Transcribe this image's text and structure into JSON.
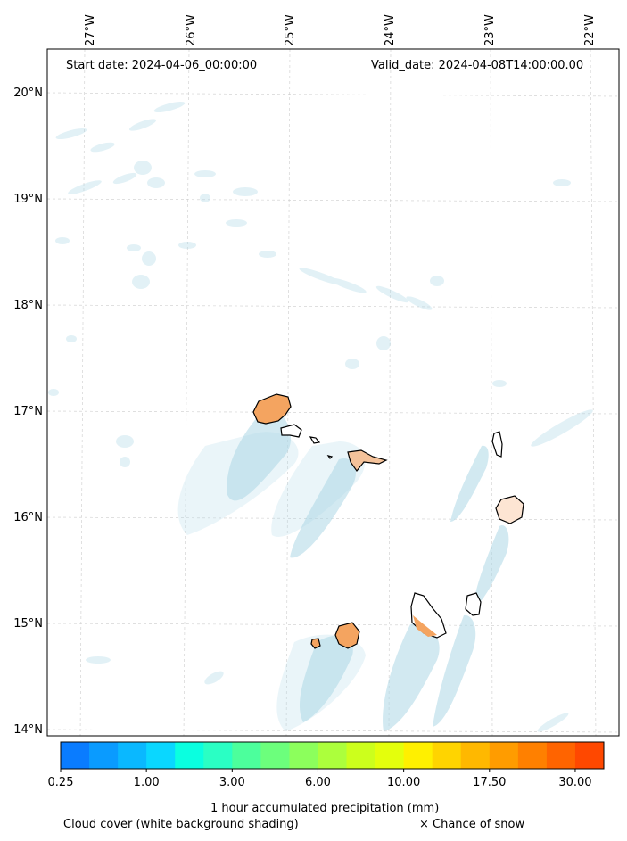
{
  "header": {
    "start_date": "Start date: 2024-04-06_00:00:00",
    "valid_date": "Valid_date: 2024-04-08T14:00:00.00"
  },
  "axes": {
    "longitudes": [
      "27°W",
      "26°W",
      "25°W",
      "24°W",
      "23°W",
      "22°W"
    ],
    "latitudes": [
      "20°N",
      "19°N",
      "18°N",
      "17°N",
      "16°N",
      "15°N",
      "14°N"
    ]
  },
  "colorbar": {
    "label": "1 hour accumulated precipitation (mm)",
    "ticks": [
      "0.25",
      "1.00",
      "3.00",
      "6.00",
      "10.00",
      "17.50",
      "30.00"
    ],
    "colors": [
      "#0a7cff",
      "#0a9bff",
      "#0ab8ff",
      "#0ad7ff",
      "#0affe0",
      "#2affc4",
      "#4cff9c",
      "#6cff7c",
      "#8cff5c",
      "#acff3c",
      "#ccff1c",
      "#e4ff0c",
      "#fff000",
      "#ffd400",
      "#ffb800",
      "#ff9c00",
      "#ff8000",
      "#ff6400",
      "#ff4800"
    ]
  },
  "legend": {
    "cloud_cover": "Cloud cover (white background shading)",
    "snow": "× Chance of snow"
  },
  "colors": {
    "cloud": "#add8e6",
    "precip_island": "#f4a460",
    "grid": "#cccccc"
  }
}
